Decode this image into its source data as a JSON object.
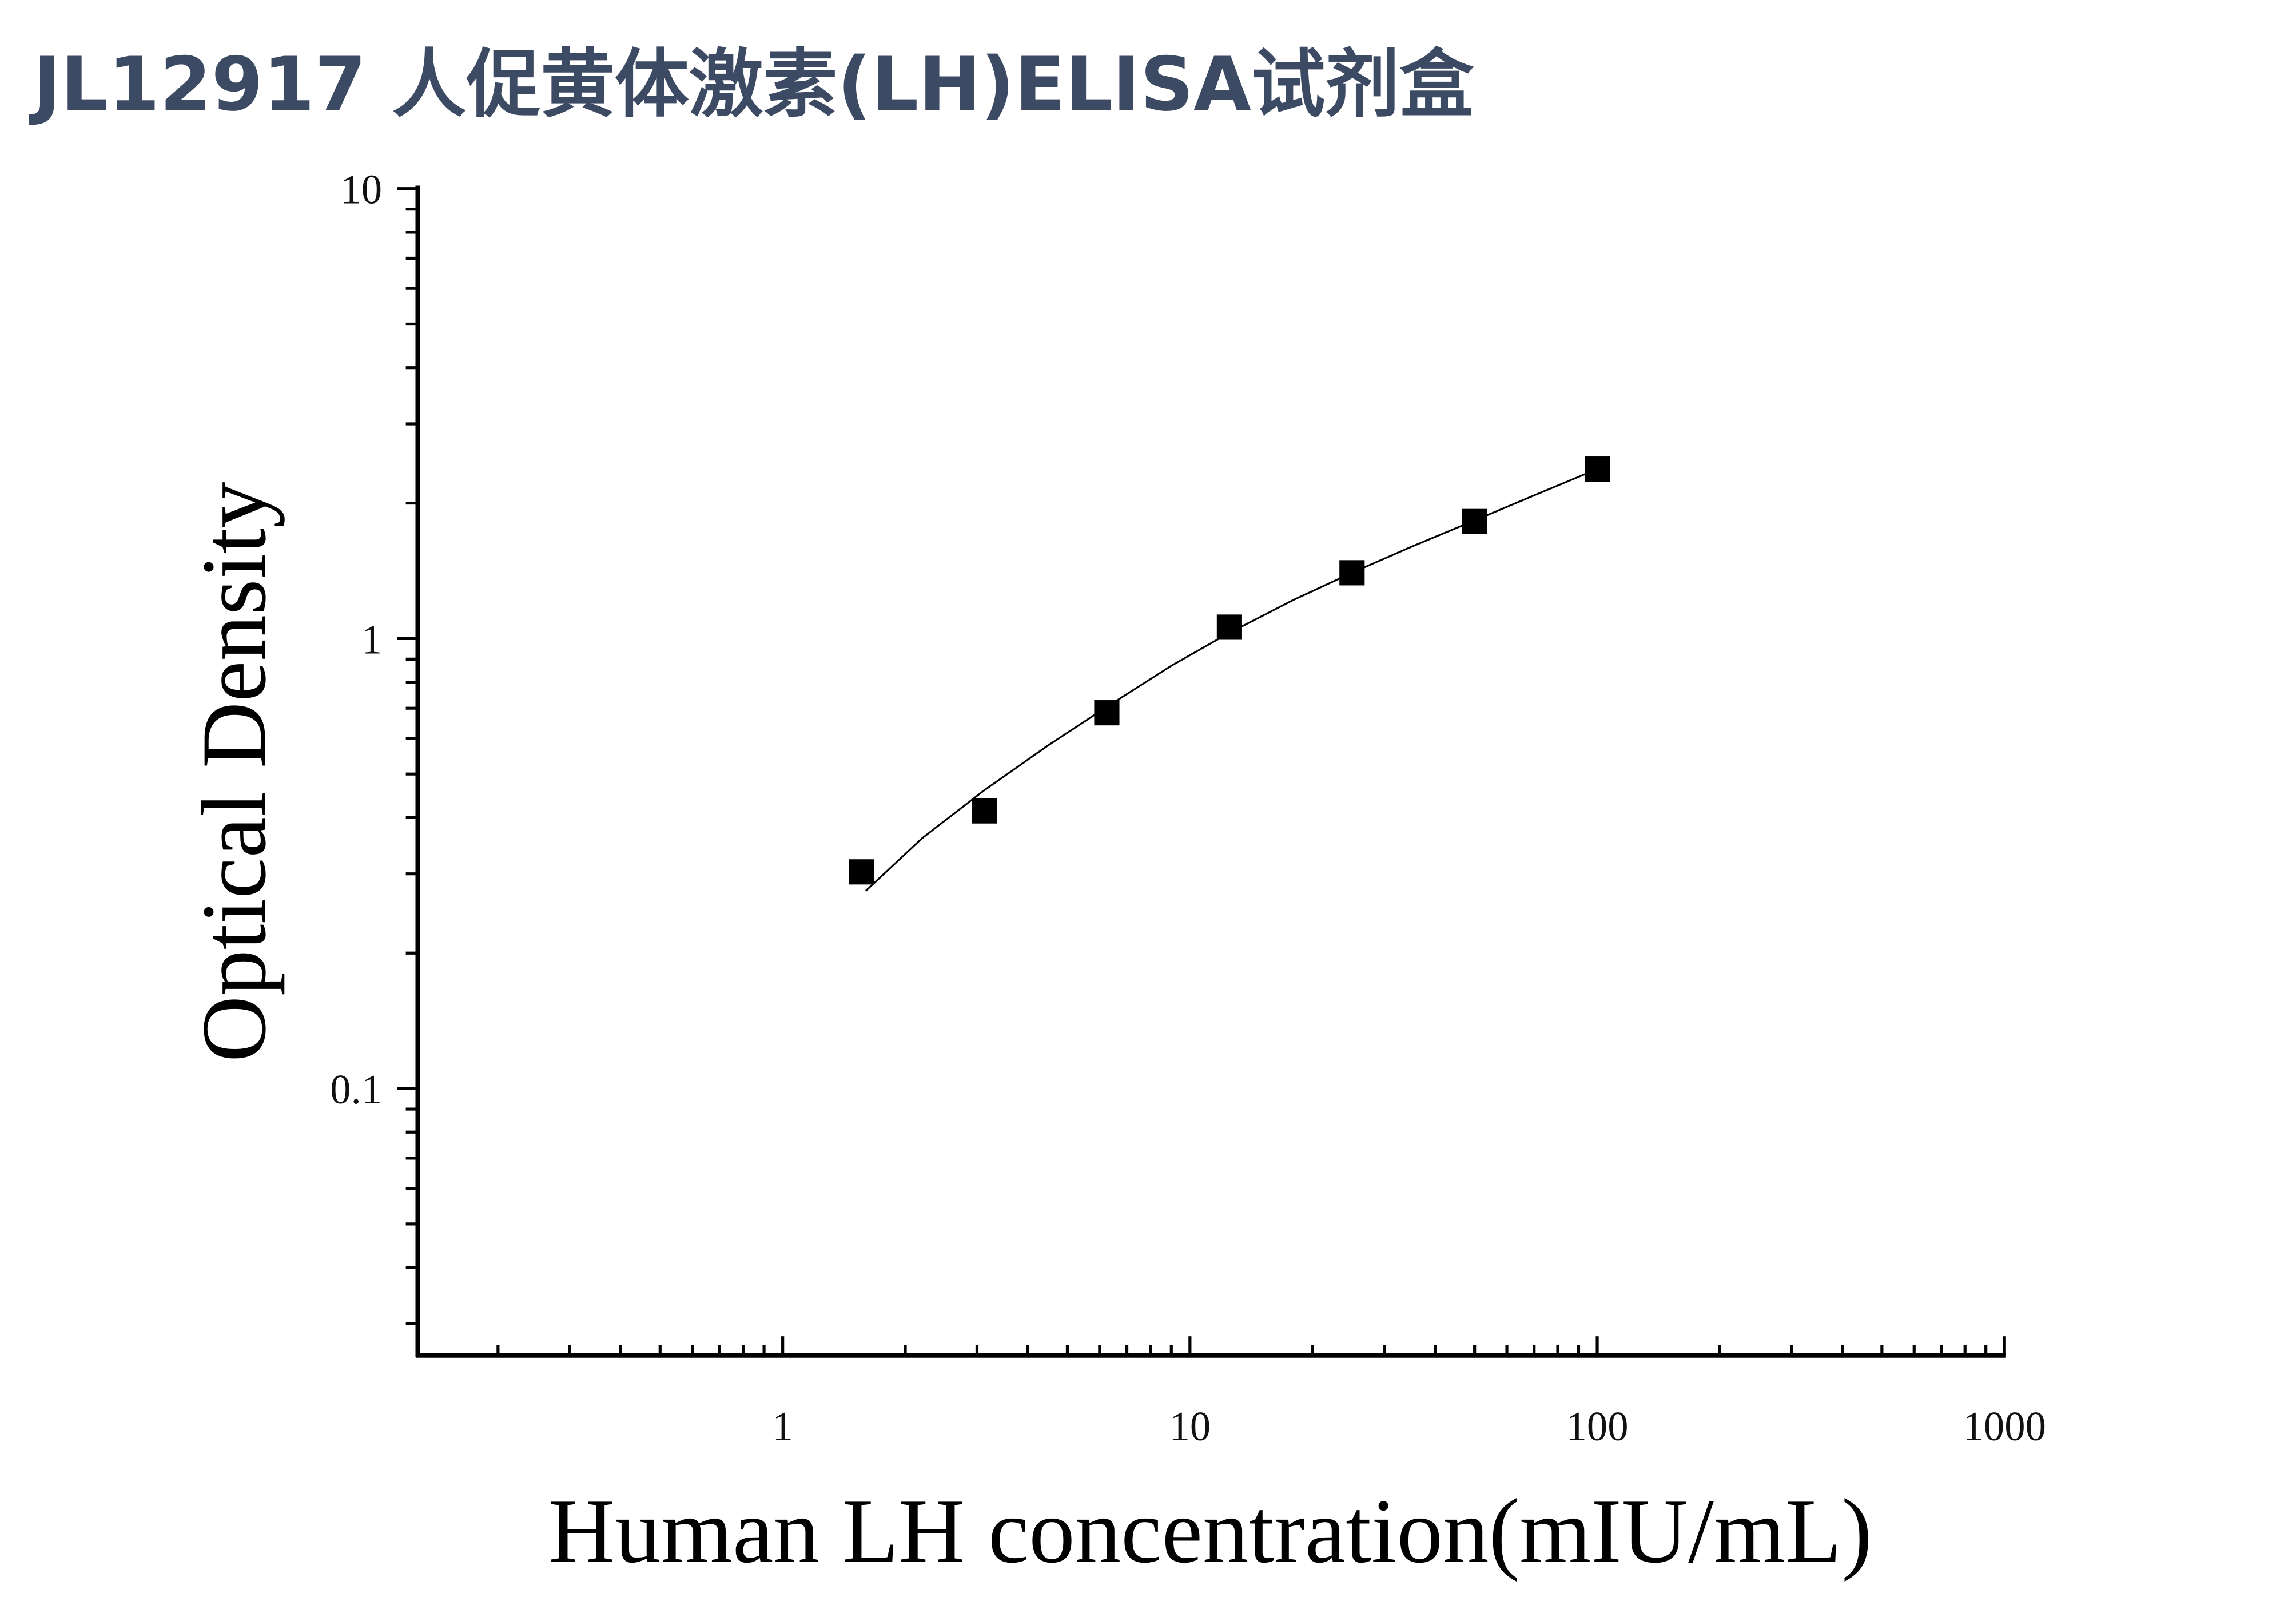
{
  "chart_data": {
    "type": "scatter",
    "title": "JL12917 人促黄体激素(LH)ELISA试剂盒",
    "xlabel": "Human LH concentration(mIU/mL)",
    "ylabel": "Optical Density",
    "x": [
      1.5625,
      3.125,
      6.25,
      12.5,
      25,
      50,
      100
    ],
    "values": [
      0.303,
      0.414,
      0.684,
      1.06,
      1.4,
      1.82,
      2.38
    ],
    "color": "#000000",
    "fit": {
      "x": [
        1.6,
        2.2,
        3.125,
        4.5,
        6.25,
        9,
        12.5,
        18,
        25,
        35,
        50,
        70,
        100
      ],
      "values": [
        0.275,
        0.36,
        0.46,
        0.58,
        0.705,
        0.87,
        1.03,
        1.22,
        1.4,
        1.6,
        1.83,
        2.08,
        2.38
      ],
      "color": "#000000"
    },
    "xscale": "log",
    "yscale": "log",
    "xlim": [
      0.127,
      1000
    ],
    "ylim": [
      0.0255,
      10
    ],
    "xticks": [
      1,
      10,
      100,
      1000
    ],
    "yticks": [
      0.1,
      1,
      10
    ],
    "xminorticks": [
      0.2,
      0.3,
      0.4,
      0.5,
      0.6,
      0.7,
      0.8,
      0.9,
      2,
      3,
      4,
      5,
      6,
      7,
      8,
      9,
      20,
      30,
      40,
      50,
      60,
      70,
      80,
      90,
      200,
      300,
      400,
      500,
      600,
      700,
      800,
      900
    ],
    "yminorticks": [
      0.03,
      0.04,
      0.05,
      0.06,
      0.07,
      0.08,
      0.09,
      0.2,
      0.3,
      0.4,
      0.5,
      0.6,
      0.7,
      0.8,
      0.9,
      2,
      3,
      4,
      5,
      6,
      7,
      8,
      9
    ],
    "grid": false
  }
}
